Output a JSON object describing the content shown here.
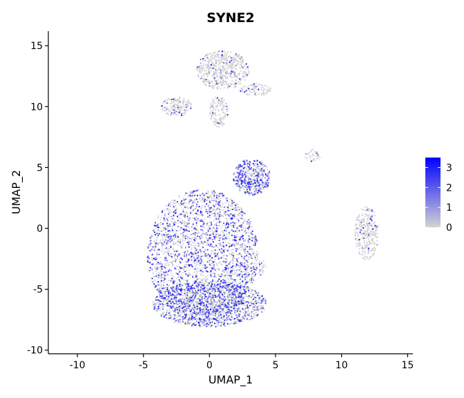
{
  "chart_data": {
    "type": "scatter",
    "title": "SYNE2",
    "xlabel": "UMAP_1",
    "ylabel": "UMAP_2",
    "xlim": [
      -12.2,
      15.4
    ],
    "ylim": [
      -10.3,
      16.2
    ],
    "xticks": [
      -10,
      -5,
      0,
      5,
      10,
      15
    ],
    "yticks": [
      -10,
      -5,
      0,
      5,
      10,
      15
    ],
    "grid": false,
    "color_scale": {
      "low": "#d3d3d3",
      "high": "#0000ff",
      "min": 0,
      "max": 3.5,
      "ticks": [
        0,
        1,
        2,
        3
      ]
    },
    "clusters": [
      {
        "name": "main",
        "cx": -0.5,
        "cy": -2.2,
        "rx": 4.2,
        "ry": 5.4,
        "n": 2600,
        "expression": 0.9
      },
      {
        "name": "main-lower",
        "cx": 0.0,
        "cy": -6.2,
        "rx": 4.3,
        "ry": 1.9,
        "n": 1400,
        "expression": 0.95
      },
      {
        "name": "mid",
        "cx": 3.2,
        "cy": 4.2,
        "rx": 1.4,
        "ry": 1.5,
        "n": 450,
        "expression": 1.1
      },
      {
        "name": "top",
        "cx": 1.0,
        "cy": 13.0,
        "rx": 2.0,
        "ry": 1.6,
        "n": 550,
        "expression": 0.25
      },
      {
        "name": "top-left",
        "cx": -2.5,
        "cy": 10.0,
        "rx": 1.2,
        "ry": 0.8,
        "n": 150,
        "expression": 0.4
      },
      {
        "name": "top-stalk",
        "cx": 0.7,
        "cy": 9.6,
        "rx": 0.7,
        "ry": 1.3,
        "n": 140,
        "expression": 0.2
      },
      {
        "name": "top-right",
        "cx": 3.5,
        "cy": 11.4,
        "rx": 1.2,
        "ry": 0.5,
        "n": 90,
        "expression": 0.3
      },
      {
        "name": "right",
        "cx": 11.9,
        "cy": -0.4,
        "rx": 0.9,
        "ry": 2.2,
        "n": 300,
        "expression": 0.25
      },
      {
        "name": "small-island",
        "cx": 7.8,
        "cy": 6.0,
        "rx": 0.6,
        "ry": 0.5,
        "n": 35,
        "expression": 0.3
      },
      {
        "name": "tail",
        "cx": 3.8,
        "cy": -3.2,
        "rx": 0.5,
        "ry": 0.7,
        "n": 30,
        "expression": 0.3
      }
    ]
  }
}
